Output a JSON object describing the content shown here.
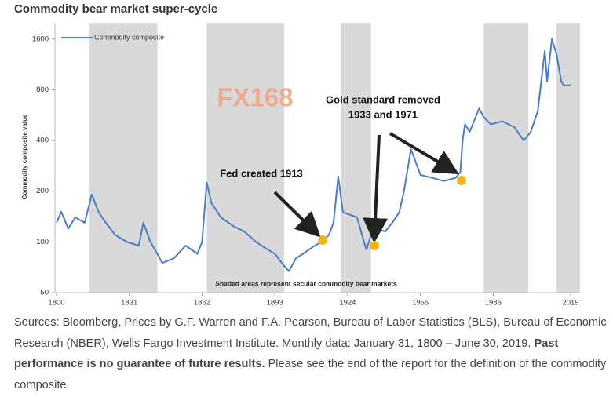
{
  "chart_data": {
    "type": "line",
    "title": "Commodity bear market super-cycle",
    "y_label": "Commodity composite value",
    "note": "Shaded areas represent secular commodity bear markets",
    "watermark": "FX168",
    "annotations": [
      "Fed created 1913",
      "Gold standard removed",
      "1933 and 1971"
    ],
    "log_y": true,
    "shade_color": "#d9d9d9",
    "shaded_periods": [
      [
        1814,
        1843
      ],
      [
        1864,
        1897
      ],
      [
        1921,
        1934
      ],
      [
        1982,
        2001
      ],
      [
        2013,
        2023
      ]
    ],
    "xlim": [
      1800,
      2023
    ],
    "xticks": [
      1800,
      1831,
      1862,
      1893,
      1924,
      1955,
      1986,
      2019
    ],
    "ylim": [
      50,
      2000
    ],
    "yticks": [
      50,
      100,
      200,
      400,
      800,
      1600
    ],
    "series": [
      {
        "name": "Commodity composite",
        "color": "#4a7cc2",
        "x": [
          1800,
          1802,
          1805,
          1808,
          1812,
          1815,
          1818,
          1821,
          1825,
          1830,
          1835,
          1837,
          1840,
          1843,
          1845,
          1850,
          1855,
          1860,
          1862,
          1864,
          1866,
          1870,
          1875,
          1880,
          1885,
          1890,
          1893,
          1896,
          1899,
          1902,
          1905,
          1910,
          1913,
          1916,
          1918,
          1920,
          1922,
          1925,
          1928,
          1931,
          1932,
          1934,
          1937,
          1940,
          1943,
          1946,
          1948,
          1951,
          1955,
          1960,
          1965,
          1970,
          1972,
          1973,
          1974,
          1976,
          1980,
          1982,
          1985,
          1990,
          1995,
          1999,
          2002,
          2005,
          2008,
          2009,
          2011,
          2013,
          2015,
          2016,
          2019
        ],
        "values": [
          130,
          151,
          120,
          140,
          130,
          191,
          150,
          130,
          110,
          100,
          95,
          130,
          100,
          85,
          75,
          80,
          95,
          85,
          100,
          225,
          170,
          140,
          125,
          115,
          100,
          90,
          85,
          75,
          67,
          80,
          85,
          95,
          100,
          110,
          130,
          245,
          150,
          145,
          140,
          100,
          90,
          110,
          120,
          115,
          130,
          150,
          200,
          355,
          250,
          240,
          230,
          240,
          260,
          400,
          500,
          450,
          620,
          550,
          500,
          520,
          480,
          400,
          450,
          600,
          1360,
          900,
          1600,
          1300,
          900,
          850,
          850
        ]
      }
    ]
  },
  "source_note": [
    "Sources: Bloomberg, Prices by G.F. Warren and F.A. Pearson, Bureau of Labor Statistics (BLS), Bureau of Economic Research (NBER), Wells Fargo Investment Institute. Monthly data: January 31, 1800 – June 30, 2019.",
    "Past performance is no guarantee of future results.",
    "Please see the end of the report for the definition of the commodity composite."
  ]
}
